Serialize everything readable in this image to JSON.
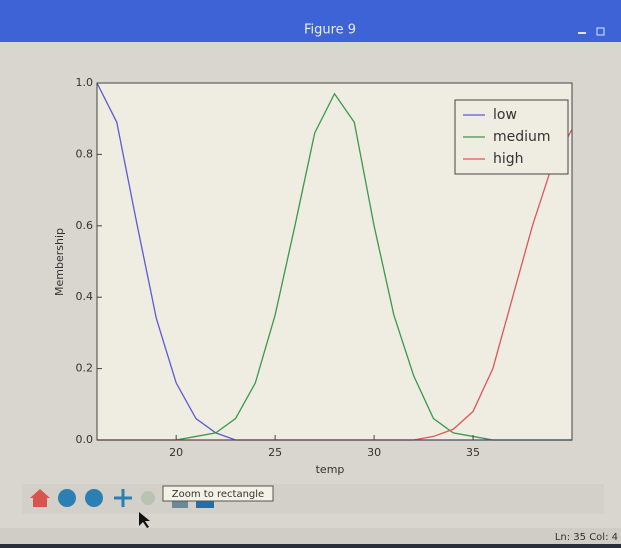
{
  "window": {
    "title": "Figure 9",
    "tooltip": "Zoom to rectangle",
    "status": "Ln: 35 Col: 4"
  },
  "chart_data": {
    "type": "line",
    "xlabel": "temp",
    "ylabel": "Membership",
    "x": [
      16,
      17,
      18,
      19,
      20,
      21,
      22,
      23,
      24,
      25,
      26,
      27,
      28,
      29,
      30,
      31,
      32,
      33,
      34,
      35,
      36,
      37,
      38,
      39,
      40
    ],
    "series": [
      {
        "name": "low",
        "color": "#5b5bd6",
        "values": [
          1.0,
          0.89,
          0.61,
          0.34,
          0.16,
          0.06,
          0.02,
          0.0,
          0.0,
          0,
          0,
          0,
          0,
          0,
          0,
          0,
          0,
          0,
          0,
          0,
          0,
          0,
          0,
          0,
          0
        ]
      },
      {
        "name": "medium",
        "color": "#3a9a4a",
        "values": [
          0,
          0,
          0,
          0,
          0,
          0.01,
          0.02,
          0.06,
          0.16,
          0.35,
          0.6,
          0.86,
          0.97,
          0.89,
          0.6,
          0.35,
          0.18,
          0.06,
          0.02,
          0.01,
          0,
          0,
          0,
          0,
          0
        ]
      },
      {
        "name": "high",
        "color": "#e05555",
        "values": [
          0,
          0,
          0,
          0,
          0,
          0,
          0,
          0,
          0,
          0,
          0,
          0,
          0,
          0,
          0,
          0,
          0,
          0.01,
          0.03,
          0.08,
          0.2,
          0.4,
          0.6,
          0.77,
          0.87
        ]
      }
    ],
    "xlim": [
      16,
      40
    ],
    "ylim": [
      0,
      1.0
    ],
    "xticks": [
      20,
      25,
      30,
      35
    ],
    "yticks": [
      {
        "value": 0,
        "label": "0.0"
      },
      {
        "value": 0.2,
        "label": "0.2"
      },
      {
        "value": 0.4,
        "label": "0.4"
      },
      {
        "value": 0.6,
        "label": "0.6"
      },
      {
        "value": 0.8,
        "label": "0.8"
      },
      {
        "value": 1.0,
        "label": "1.0"
      }
    ],
    "legend": "upper right"
  }
}
